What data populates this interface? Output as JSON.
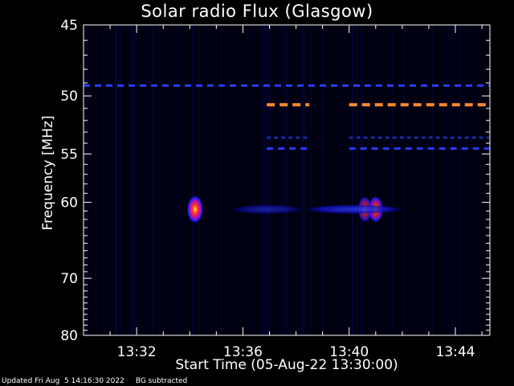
{
  "chart_data": {
    "type": "heatmap",
    "title": "Solar radio Flux (Glasgow)",
    "ylabel": "Frequency [MHz]",
    "xlabel": "Start Time (05-Aug-22 13:30:00)",
    "x_ticks": [
      "13:32",
      "13:36",
      "13:40",
      "13:44"
    ],
    "x_tick_minutes": [
      2,
      6,
      10,
      14
    ],
    "xlim_minutes": [
      0,
      15.3
    ],
    "y_ticks": [
      45,
      50,
      55,
      60,
      70,
      80
    ],
    "ylim": [
      45,
      80
    ],
    "y_scale": "reciprocal",
    "colormap": [
      "#000010",
      "#0a0a9a",
      "#2030ff",
      "#ff6020",
      "#ffd040"
    ],
    "features": [
      {
        "name": "burst",
        "time_min": 4.2,
        "freq_mhz": 60.8,
        "intensity": 1.0
      },
      {
        "name": "burst",
        "time_min": 11.0,
        "freq_mhz": 60.8,
        "intensity": 0.85
      },
      {
        "name": "burst",
        "time_min": 10.6,
        "freq_mhz": 60.8,
        "intensity": 0.7
      },
      {
        "name": "band",
        "t_start_min": 8.3,
        "t_end_min": 12.1,
        "freq_mhz": 60.8,
        "intensity": 0.4
      },
      {
        "name": "band",
        "t_start_min": 5.5,
        "t_end_min": 8.3,
        "freq_mhz": 60.8,
        "intensity": 0.15
      },
      {
        "name": "interference",
        "t_start_min": 0,
        "t_end_min": 15.3,
        "freq_mhz": 49.2,
        "intensity": 0.35
      },
      {
        "name": "interference",
        "t_start_min": 6.9,
        "t_end_min": 8.5,
        "freq_mhz": 50.7,
        "intensity": 0.8
      },
      {
        "name": "interference",
        "t_start_min": 10.0,
        "t_end_min": 15.3,
        "freq_mhz": 50.7,
        "intensity": 0.8
      },
      {
        "name": "interference",
        "t_start_min": 6.9,
        "t_end_min": 8.5,
        "freq_mhz": 53.5,
        "intensity": 0.2
      },
      {
        "name": "interference",
        "t_start_min": 10.0,
        "t_end_min": 15.3,
        "freq_mhz": 53.5,
        "intensity": 0.2
      },
      {
        "name": "interference",
        "t_start_min": 6.9,
        "t_end_min": 8.5,
        "freq_mhz": 54.5,
        "intensity": 0.35
      },
      {
        "name": "interference",
        "t_start_min": 10.0,
        "t_end_min": 15.3,
        "freq_mhz": 54.5,
        "intensity": 0.35
      }
    ]
  },
  "footer": {
    "updated": "Updated Fri Aug  5 14:16:30 2022",
    "mode": "BG subtracted"
  }
}
